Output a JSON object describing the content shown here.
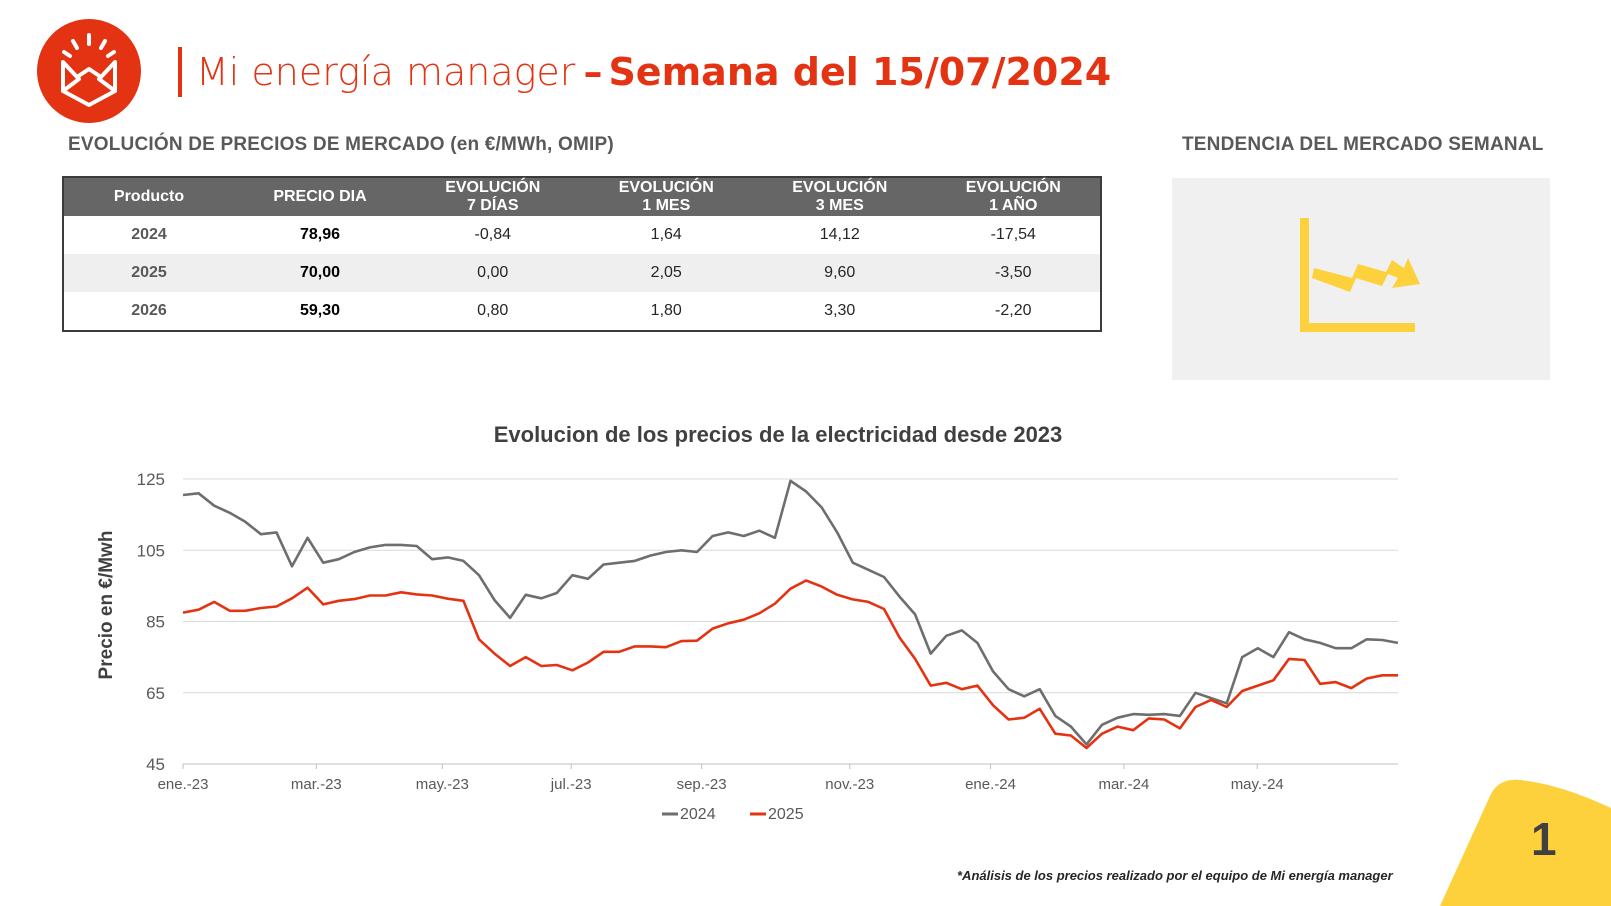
{
  "header": {
    "brand": "Mi energía manager",
    "separator": "–",
    "week": "Semana del 15/07/2024"
  },
  "market_prices": {
    "title": "EVOLUCIÓN DE PRECIOS DE MERCADO (en €/MWh, OMIP)",
    "columns": [
      [
        "Producto",
        ""
      ],
      [
        "PRECIO DIA",
        ""
      ],
      [
        "EVOLUCIÓN",
        "7 DÍAS"
      ],
      [
        "EVOLUCIÓN",
        "1 MES"
      ],
      [
        "EVOLUCIÓN",
        "3 MES"
      ],
      [
        "EVOLUCIÓN",
        "1 AÑO"
      ]
    ],
    "rows": [
      [
        "2024",
        "78,96",
        "-0,84",
        "1,64",
        "14,12",
        "-17,54"
      ],
      [
        "2025",
        "70,00",
        "0,00",
        "2,05",
        "9,60",
        "-3,50"
      ],
      [
        "2026",
        "59,30",
        "0,80",
        "1,80",
        "3,30",
        "-2,20"
      ]
    ]
  },
  "trend": {
    "title": "TENDENCIA DEL MERCADO SEMANAL",
    "icon": "downtrend-chart-icon",
    "color": "#fcd13c"
  },
  "colors": {
    "brand": "#e43312",
    "accent_yellow": "#fcd13c",
    "series_2024": "#6e6e6e",
    "series_2025": "#e43312"
  },
  "chart_data": {
    "type": "line",
    "title": "Evolucion de los precios de la electricidad desde 2023",
    "ylabel": "Precio en €/Mwh",
    "xlabel": "",
    "ylim": [
      45,
      125
    ],
    "yticks": [
      45,
      65,
      85,
      105,
      125
    ],
    "grid": true,
    "legend": "bottom",
    "x_range_weeks": [
      0,
      82
    ],
    "xticks": [
      {
        "label": "ene.-23",
        "week": 0
      },
      {
        "label": "mar.-23",
        "week": 9
      },
      {
        "label": "may.-23",
        "week": 17.5
      },
      {
        "label": "jul.-23",
        "week": 26.2
      },
      {
        "label": "sep.-23",
        "week": 35
      },
      {
        "label": "nov.-23",
        "week": 45
      },
      {
        "label": "ene.-24",
        "week": 54.5
      },
      {
        "label": "mar.-24",
        "week": 63.5
      },
      {
        "label": "may.-24",
        "week": 72.5
      }
    ],
    "series": [
      {
        "name": "2024",
        "color": "#6e6e6e",
        "values": [
          120.5,
          121,
          117.5,
          115.5,
          113,
          109.5,
          110,
          100.5,
          108.5,
          101.5,
          102.5,
          104.5,
          105.8,
          106.5,
          106.5,
          106.2,
          102.5,
          103,
          102,
          98,
          91,
          86,
          92.5,
          91.5,
          93,
          98,
          97,
          101,
          101.5,
          102,
          103.5,
          104.5,
          105,
          104.5,
          109,
          110,
          109,
          110.5,
          108.5,
          124.5,
          121.5,
          117,
          110,
          101.5,
          99.5,
          97.5,
          92,
          87,
          76,
          81,
          82.5,
          79,
          71,
          66,
          64,
          66,
          58.5,
          55.5,
          50.5,
          56,
          58,
          59,
          58.8,
          59,
          58.5,
          65,
          63.5,
          62,
          75,
          77.5,
          75,
          82,
          80,
          79,
          77.5,
          77.5,
          80,
          79.8,
          79
        ]
      },
      {
        "name": "2025",
        "color": "#e43312",
        "values": [
          87.5,
          88.3,
          90.5,
          88,
          88,
          88.8,
          89.2,
          91.5,
          94.5,
          89.8,
          90.8,
          91.3,
          92.3,
          92.3,
          93.2,
          92.6,
          92.3,
          91.4,
          90.8,
          80,
          76,
          72.5,
          75,
          72.5,
          72.8,
          71.3,
          73.5,
          76.5,
          76.5,
          78,
          78,
          77.8,
          79.5,
          79.6,
          83,
          84.5,
          85.5,
          87.3,
          90,
          94.2,
          96.5,
          94.8,
          92.5,
          91.2,
          90.5,
          88.5,
          80.5,
          74.5,
          67,
          67.8,
          66,
          67,
          61.5,
          57.5,
          58,
          60.5,
          53.5,
          53,
          49.5,
          53.5,
          55.5,
          54.5,
          57.8,
          57.5,
          55,
          61,
          63,
          61,
          65.5,
          67,
          68.5,
          74.5,
          74.2,
          67.5,
          68,
          66.3,
          69,
          69.9,
          69.9
        ]
      }
    ]
  },
  "footnote": "*Análisis de los precios realizado por el equipo de Mi energía manager",
  "page_number": "1"
}
